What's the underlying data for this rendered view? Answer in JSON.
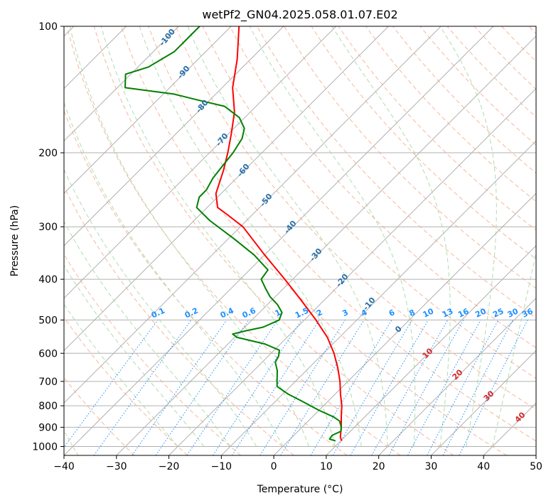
{
  "chart_data": {
    "type": "skew-t",
    "title": "wetPf2_GN04.2025.058.01.07.E02",
    "xlabel": "Temperature (°C)",
    "ylabel": "Pressure (hPa)",
    "xlim": [
      -40,
      50
    ],
    "ylim": [
      1050,
      100
    ],
    "x_ticks": [
      -40,
      -30,
      -20,
      -10,
      0,
      10,
      20,
      30,
      40,
      50
    ],
    "y_ticks": [
      100,
      200,
      300,
      400,
      500,
      600,
      700,
      800,
      900,
      1000
    ],
    "grid": true,
    "series": [
      {
        "name": "",
        "color": "#ff0000",
        "p": [
          970,
          950,
          900,
          850,
          800,
          750,
          700,
          650,
          600,
          550,
          500,
          450,
          400,
          350,
          300,
          280,
          270,
          250,
          220,
          200,
          180,
          160,
          140,
          120,
          100
        ],
        "t": [
          10.2,
          9.2,
          7.5,
          5.5,
          3.5,
          1.0,
          -1.5,
          -4.5,
          -8.0,
          -12.3,
          -17.8,
          -24.2,
          -31.5,
          -40.0,
          -49.5,
          -55.0,
          -58.0,
          -61.0,
          -64.0,
          -66.5,
          -69.5,
          -73.0,
          -78.0,
          -82.5,
          -88.5
        ]
      },
      {
        "name": "",
        "color": "#008000",
        "p": [
          970,
          960,
          940,
          920,
          900,
          870,
          850,
          820,
          780,
          750,
          720,
          700,
          660,
          630,
          610,
          590,
          570,
          550,
          540,
          530,
          520,
          500,
          480,
          460,
          440,
          420,
          400,
          380,
          350,
          320,
          290,
          270,
          255,
          245,
          230,
          215,
          200,
          185,
          175,
          165,
          155,
          150,
          145,
          140,
          130,
          125,
          115,
          110,
          105,
          100
        ],
        "td": [
          9.0,
          7.5,
          7.3,
          8.2,
          7.5,
          6.0,
          4.0,
          0.0,
          -5.0,
          -9.0,
          -12.5,
          -13.5,
          -15.5,
          -17.5,
          -18.0,
          -19.0,
          -23.0,
          -29.5,
          -31.0,
          -29.0,
          -26.5,
          -24.8,
          -25.7,
          -28.0,
          -31.0,
          -33.5,
          -36.0,
          -36.5,
          -42.0,
          -49.0,
          -57.0,
          -62.0,
          -63.5,
          -63.5,
          -64.5,
          -65.0,
          -65.5,
          -66.5,
          -68.0,
          -71.0,
          -76.0,
          -82.0,
          -88.0,
          -98.5,
          -101.0,
          -98.0,
          -96.0,
          -96.0,
          -96.0,
          -96.0
        ]
      }
    ],
    "moist_adiabat_labels": [
      "-100",
      "-90",
      "-80",
      "-70",
      "-60",
      "-50",
      "-40",
      "-30",
      "-20",
      "-10"
    ],
    "mixing_ratio_labels": [
      "0.1",
      "0.2",
      "0.4",
      "0.6",
      "1",
      "1.5",
      "2",
      "3",
      "4",
      "6",
      "8",
      "10",
      "13",
      "16",
      "20",
      "25",
      "30",
      "36"
    ],
    "dry_adiabat_labels": [
      "0",
      "10",
      "20",
      "30",
      "40"
    ],
    "colors": {
      "temperature": "#ff0000",
      "dewpoint": "#008000",
      "isotherm": "#b0b0b0",
      "dry_adiabat": "#f4a582",
      "moist_adiabat": "#a6d8a6",
      "mixing_ratio": "#1e90ff",
      "saturation": "#d9c4a8"
    }
  }
}
